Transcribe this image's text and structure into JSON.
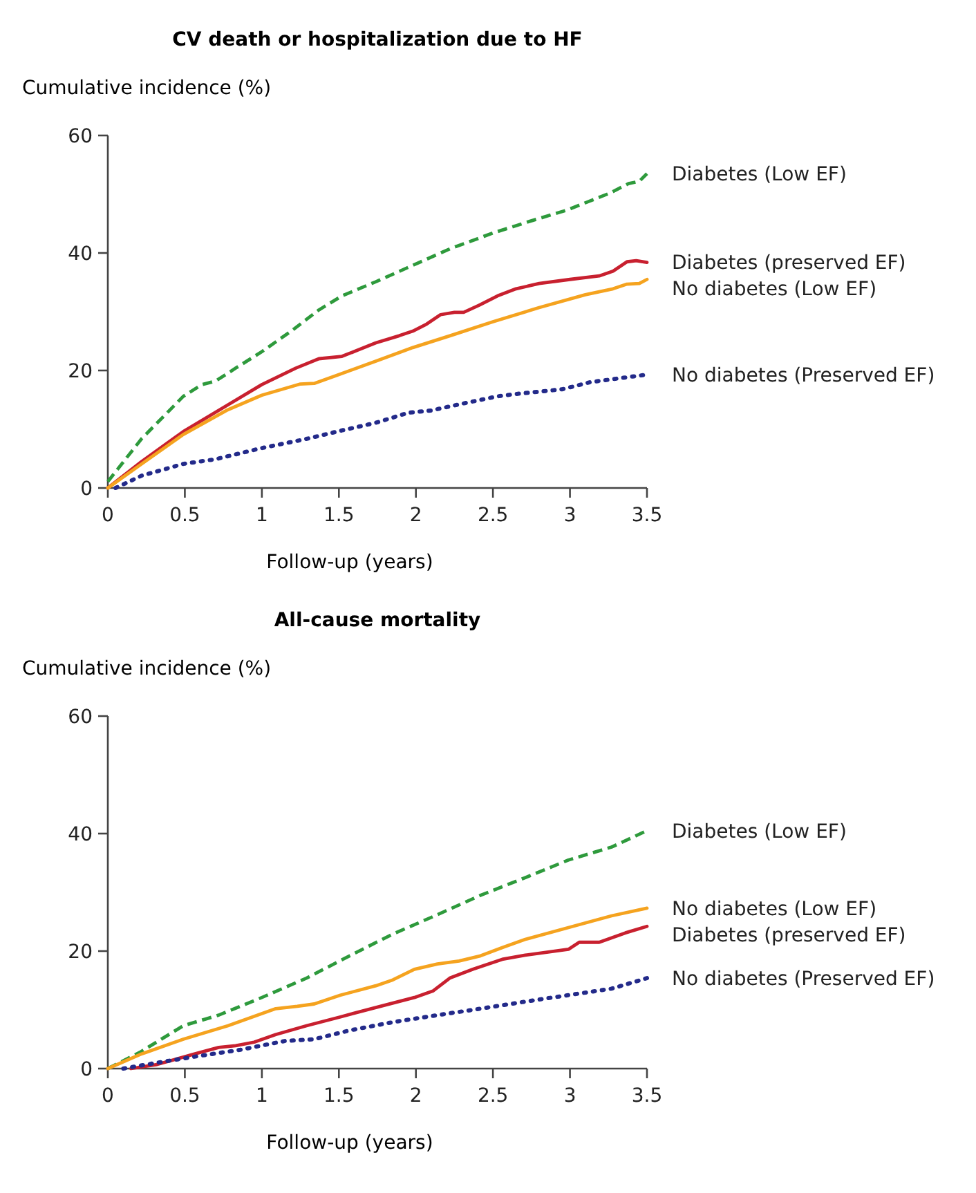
{
  "chart_data": [
    {
      "type": "line",
      "title": "CV death or hospitalization due to HF",
      "ylabel": "Cumulative incidence (%)",
      "xlabel": "Follow-up (years)",
      "xlim": [
        0,
        3.5
      ],
      "ylim": [
        0,
        60
      ],
      "xticks": [
        0,
        0.5,
        1,
        1.5,
        2,
        2.5,
        3,
        3.5
      ],
      "yticks": [
        0,
        20,
        40,
        60
      ],
      "grid": false,
      "marker": "none",
      "series": [
        {
          "name": "Diabetes (Low EF)",
          "color": "#2e9a3c",
          "line_style": "dashed",
          "x": [
            0,
            0.22,
            0.49,
            0.61,
            0.7,
            0.83,
            1,
            1.19,
            1.37,
            1.52,
            1.74,
            1.98,
            2.22,
            2.5,
            2.74,
            2.98,
            3.26,
            3.38,
            3.45,
            3.5
          ],
          "values": [
            1.1,
            8.4,
            15.6,
            17.6,
            18.2,
            20.4,
            23.2,
            26.7,
            30.3,
            32.7,
            35.1,
            37.9,
            40.7,
            43.4,
            45.4,
            47.3,
            50.2,
            51.8,
            52.2,
            53.5
          ]
        },
        {
          "name": "Diabetes (preserved EF)",
          "color": "#c8202f",
          "line_style": "solid",
          "x": [
            0,
            0.22,
            0.49,
            0.77,
            1,
            1.22,
            1.37,
            1.52,
            1.74,
            1.89,
            1.98,
            2.07,
            2.16,
            2.25,
            2.31,
            2.41,
            2.53,
            2.65,
            2.8,
            3,
            3.19,
            3.28,
            3.37,
            3.43,
            3.5
          ],
          "values": [
            0,
            4.5,
            9.6,
            14,
            17.6,
            20.4,
            22,
            22.4,
            24.7,
            25.9,
            26.7,
            27.9,
            29.5,
            29.9,
            29.9,
            31.1,
            32.7,
            33.9,
            34.8,
            35.5,
            36.1,
            36.9,
            38.5,
            38.7,
            38.4
          ]
        },
        {
          "name": "No diabetes (Low EF)",
          "color": "#f5a31f",
          "line_style": "solid",
          "x": [
            0,
            0.22,
            0.49,
            0.77,
            1,
            1.25,
            1.34,
            1.49,
            1.74,
            1.98,
            2.22,
            2.5,
            2.8,
            3.1,
            3.28,
            3.37,
            3.45,
            3.5
          ],
          "values": [
            0,
            4.1,
            9.1,
            13.2,
            15.8,
            17.7,
            17.8,
            19.2,
            21.6,
            23.9,
            25.9,
            28.3,
            30.7,
            32.9,
            33.9,
            34.7,
            34.8,
            35.5
          ]
        },
        {
          "name": "No diabetes (Preserved EF)",
          "color": "#232a8a",
          "line_style": "dotted",
          "x": [
            0.05,
            0.22,
            0.49,
            0.7,
            1,
            1.28,
            1.52,
            1.74,
            1.95,
            2.1,
            2.31,
            2.53,
            2.65,
            2.95,
            3.13,
            3.5
          ],
          "values": [
            0,
            2.1,
            4.1,
            4.9,
            6.8,
            8.3,
            9.8,
            11.1,
            12.8,
            13.2,
            14.4,
            15.6,
            16,
            16.8,
            18,
            19.3
          ]
        }
      ]
    },
    {
      "type": "line",
      "title": "All-cause mortality",
      "ylabel": "Cumulative incidence (%)",
      "xlabel": "Follow-up (years)",
      "xlim": [
        0,
        3.5
      ],
      "ylim": [
        0,
        60
      ],
      "xticks": [
        0,
        0.5,
        1,
        1.5,
        2,
        2.5,
        3,
        3.5
      ],
      "yticks": [
        0,
        20,
        40,
        60
      ],
      "grid": false,
      "marker": "none",
      "series": [
        {
          "name": "Diabetes (Low EF)",
          "color": "#2e9a3c",
          "line_style": "dashed",
          "x": [
            0,
            0.21,
            0.49,
            0.72,
            1,
            1.29,
            1.57,
            1.85,
            2.14,
            2.42,
            2.71,
            2.99,
            3.27,
            3.5
          ],
          "values": [
            0,
            2.8,
            7.3,
            9.1,
            12.1,
            15.4,
            19.2,
            22.9,
            26.2,
            29.5,
            32.5,
            35.5,
            37.7,
            40.5
          ]
        },
        {
          "name": "No diabetes (Low EF)",
          "color": "#f5a31f",
          "line_style": "solid",
          "x": [
            0,
            0.21,
            0.49,
            0.78,
            1.09,
            1.23,
            1.34,
            1.51,
            1.74,
            1.85,
            1.99,
            2.14,
            2.28,
            2.42,
            2.56,
            2.71,
            2.99,
            3.27,
            3.5
          ],
          "values": [
            0,
            2.4,
            5,
            7.3,
            10.2,
            10.6,
            11,
            12.5,
            14.1,
            15.1,
            16.9,
            17.8,
            18.3,
            19.2,
            20.6,
            22,
            24,
            26,
            27.3
          ]
        },
        {
          "name": "Diabetes (preserved EF)",
          "color": "#c8202f",
          "line_style": "solid",
          "x": [
            0.15,
            0.32,
            0.55,
            0.72,
            0.83,
            0.95,
            1.09,
            1.29,
            1.51,
            1.74,
            1.99,
            2.11,
            2.22,
            2.37,
            2.56,
            2.71,
            2.99,
            3.06,
            3.19,
            3.36,
            3.5
          ],
          "values": [
            0,
            0.7,
            2.4,
            3.6,
            3.9,
            4.5,
            5.8,
            7.3,
            8.8,
            10.4,
            12.1,
            13.2,
            15.4,
            16.9,
            18.6,
            19.3,
            20.3,
            21.5,
            21.5,
            23.1,
            24.2
          ]
        },
        {
          "name": "No diabetes (Preserved EF)",
          "color": "#232a8a",
          "line_style": "dotted",
          "x": [
            0.1,
            0.32,
            0.58,
            0.86,
            1.15,
            1.34,
            1.57,
            1.85,
            2.14,
            2.42,
            2.71,
            2.99,
            3.27,
            3.5
          ],
          "values": [
            0,
            1,
            2.1,
            3.2,
            4.7,
            5,
            6.5,
            7.9,
            9.1,
            10.2,
            11.4,
            12.5,
            13.6,
            15.4
          ]
        }
      ]
    }
  ]
}
